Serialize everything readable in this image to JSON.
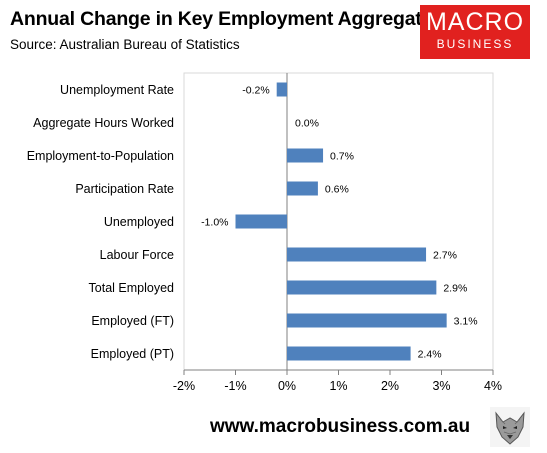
{
  "header": {
    "title": "Annual Change in Key Employment Aggregates",
    "subtitle": "Source: Australian Bureau of Statistics"
  },
  "logo": {
    "line1": "MACRO",
    "line2": "BUSINESS"
  },
  "footer": {
    "url": "www.macrobusiness.com.au"
  },
  "colors": {
    "bar": "#4f81bd",
    "logo_bg": "#e1211f"
  },
  "icons": {
    "footer_image": "wolf-icon"
  },
  "chart_data": {
    "type": "bar",
    "orientation": "horizontal",
    "title": "Annual Change in Key Employment Aggregates",
    "categories": [
      "Unemployment Rate",
      "Aggregate Hours Worked",
      "Employment-to-Population",
      "Participation Rate",
      "Unemployed",
      "Labour Force",
      "Total Employed",
      "Employed (FT)",
      "Employed (PT)"
    ],
    "values": [
      -0.2,
      0.0,
      0.7,
      0.6,
      -1.0,
      2.7,
      2.9,
      3.1,
      2.4
    ],
    "data_labels": [
      "-0.2%",
      "0.0%",
      "0.7%",
      "0.6%",
      "-1.0%",
      "2.7%",
      "2.9%",
      "3.1%",
      "2.4%"
    ],
    "xlim": [
      -2,
      4
    ],
    "x_ticks": [
      -2,
      -1,
      0,
      1,
      2,
      3,
      4
    ],
    "x_tick_labels": [
      "-2%",
      "-1%",
      "0%",
      "1%",
      "2%",
      "3%",
      "4%"
    ],
    "grid": false,
    "legend": "none"
  }
}
